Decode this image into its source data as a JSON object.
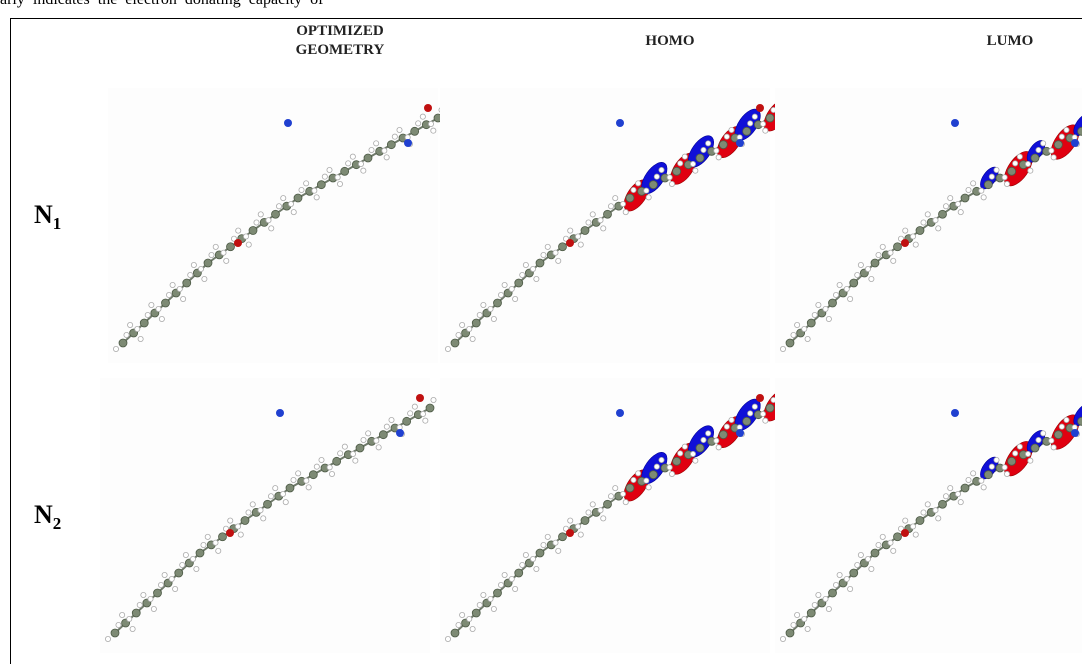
{
  "caption_fragment": "arly indicates the electron donating capacity of",
  "columns": [
    {
      "lines": [
        "OPTIMIZED",
        "GEOMETRY"
      ]
    },
    {
      "lines": [
        "HOMO"
      ]
    },
    {
      "lines": [
        "LUMO"
      ]
    }
  ],
  "rows": [
    {
      "main": "N",
      "sub": "1"
    },
    {
      "main": "N",
      "sub": "2"
    }
  ]
}
